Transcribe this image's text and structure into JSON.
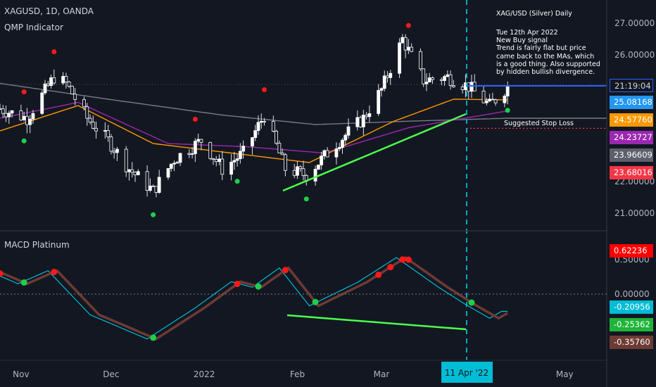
{
  "header": {
    "symbol": "XAGUSD, 1D, OANDA",
    "indicator": "QMP Indicator",
    "lower_panel": "MACD Platinum"
  },
  "annotation": {
    "title": "XAG/USD (Silver) Daily",
    "body": "Tue 12th Apr 2022\nNew Buy signal\nTrend is fairly flat but price\ncame back to the MAs, which\nis a good thing.  Also supported\nby hidden bullish divergence.",
    "stop_loss": "Suggested Stop Loss"
  },
  "price_axis": {
    "ticks": [
      "27.00000",
      "26.00000",
      "22.00000",
      "21.00000"
    ],
    "labels": [
      {
        "text": "21:19:04",
        "color": "#131722",
        "border": "#2962ff"
      },
      {
        "text": "25.08168",
        "color": "#2196f3"
      },
      {
        "text": "24.57760",
        "color": "#ff9800"
      },
      {
        "text": "24.23727",
        "color": "#9c27b0"
      },
      {
        "text": "23.96609",
        "color": "#5d606b"
      },
      {
        "text": "23.68016",
        "color": "#f23645"
      }
    ]
  },
  "macd_axis": {
    "ticks": [
      "0.50000",
      "0.00000"
    ],
    "labels": [
      {
        "text": "0.62236",
        "color": "#ff0000"
      },
      {
        "text": "-0.20956",
        "color": "#00bcd4"
      },
      {
        "text": "-0.25362",
        "color": "#1eb53a"
      },
      {
        "text": "-0.35760",
        "color": "#6d3a34"
      }
    ]
  },
  "time_axis": {
    "labels": [
      "Nov",
      "Dec",
      "2022",
      "Feb",
      "Mar",
      "A",
      "May"
    ],
    "cursor": "11 Apr '22"
  },
  "chart_data": {
    "type": "candlestick",
    "title": "XAGUSD, 1D, OANDA",
    "x_range": [
      "2021-10-25",
      "2022-05-15"
    ],
    "ylim": [
      20.8,
      27.4
    ],
    "series": [
      {
        "name": "QMP Indicator",
        "values": [
          {
            "date": "2021-10-25",
            "value": 24.3
          },
          {
            "date": "2021-11-03",
            "value": 24.0
          },
          {
            "date": "2021-11-12",
            "value": 25.3
          },
          {
            "date": "2021-11-16",
            "value": 25.1
          },
          {
            "date": "2021-11-23",
            "value": 24.0
          },
          {
            "date": "2021-11-30",
            "value": 23.3
          },
          {
            "date": "2021-12-07",
            "value": 22.4
          },
          {
            "date": "2021-12-15",
            "value": 21.7
          },
          {
            "date": "2021-12-22",
            "value": 22.7
          },
          {
            "date": "2021-12-31",
            "value": 23.3
          },
          {
            "date": "2022-01-07",
            "value": 22.4
          },
          {
            "date": "2022-01-14",
            "value": 22.9
          },
          {
            "date": "2022-01-21",
            "value": 24.1
          },
          {
            "date": "2022-01-28",
            "value": 22.4
          },
          {
            "date": "2022-02-04",
            "value": 22.2
          },
          {
            "date": "2022-02-14",
            "value": 23.2
          },
          {
            "date": "2022-02-23",
            "value": 24.0
          },
          {
            "date": "2022-03-01",
            "value": 24.9
          },
          {
            "date": "2022-03-08",
            "value": 26.5
          },
          {
            "date": "2022-03-15",
            "value": 25.2
          },
          {
            "date": "2022-03-23",
            "value": 25.3
          },
          {
            "date": "2022-03-30",
            "value": 25.0
          },
          {
            "date": "2022-04-06",
            "value": 24.4
          },
          {
            "date": "2022-04-12",
            "value": 25.0
          }
        ]
      },
      {
        "name": "MA (grey)",
        "values": [
          {
            "date": "2021-10-25",
            "value": 25.1
          },
          {
            "date": "2021-11-30",
            "value": 24.6
          },
          {
            "date": "2022-01-07",
            "value": 24.1
          },
          {
            "date": "2022-02-07",
            "value": 23.8
          },
          {
            "date": "2022-03-08",
            "value": 23.9
          },
          {
            "date": "2022-04-12",
            "value": 24.0
          }
        ]
      }
    ],
    "signals": {
      "buy": [
        "2021-11-02",
        "2021-12-15",
        "2022-01-12",
        "2022-02-04",
        "2022-04-12"
      ],
      "sell": [
        "2021-11-12",
        "2021-11-02",
        "2021-12-29",
        "2022-01-21",
        "2022-03-10"
      ]
    },
    "stop_loss": 23.68,
    "macd_ylim": [
      -0.82,
      0.72
    ],
    "macd": [
      {
        "date": "2021-10-25",
        "value": 0.3
      },
      {
        "date": "2021-11-02",
        "value": 0.15
      },
      {
        "date": "2021-11-12",
        "value": 0.34
      },
      {
        "date": "2021-11-26",
        "value": -0.3
      },
      {
        "date": "2021-12-15",
        "value": -0.65
      },
      {
        "date": "2021-12-31",
        "value": -0.2
      },
      {
        "date": "2022-01-12",
        "value": 0.18
      },
      {
        "date": "2022-01-19",
        "value": 0.1
      },
      {
        "date": "2022-01-28",
        "value": 0.38
      },
      {
        "date": "2022-02-07",
        "value": -0.17
      },
      {
        "date": "2022-02-23",
        "value": 0.17
      },
      {
        "date": "2022-03-08",
        "value": 0.53
      },
      {
        "date": "2022-03-22",
        "value": 0.1
      },
      {
        "date": "2022-03-31",
        "value": -0.15
      },
      {
        "date": "2022-04-08",
        "value": -0.35
      },
      {
        "date": "2022-04-12",
        "value": -0.25
      }
    ]
  }
}
